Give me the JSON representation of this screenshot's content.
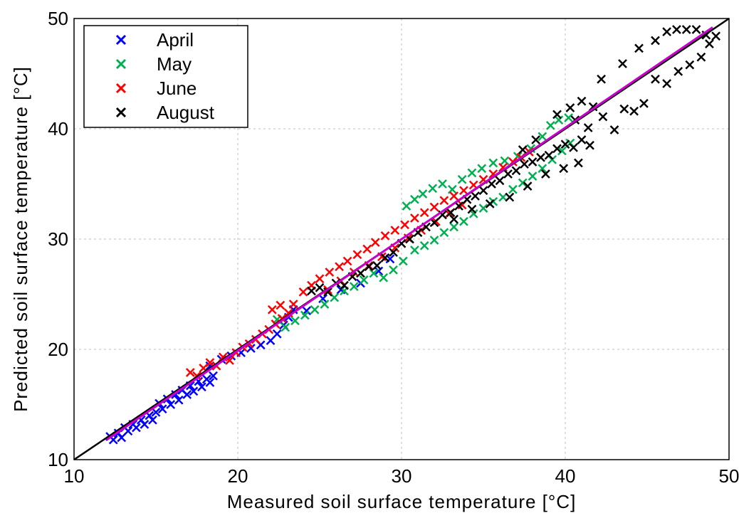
{
  "chart_data": {
    "type": "scatter",
    "title": "",
    "xlabel": "Measured soil surface temperature [°C]",
    "ylabel": "Predicted soil surface temperature [°C]",
    "xlim": [
      10,
      50
    ],
    "ylim": [
      10,
      50
    ],
    "xticks": [
      "10",
      "20",
      "30",
      "40",
      "50"
    ],
    "yticks": [
      "10",
      "20",
      "30",
      "40",
      "50"
    ],
    "grid": true,
    "marker": "x",
    "legend_position": "top-left",
    "series": [
      {
        "name": "April",
        "color": "#0000ff",
        "points": [
          [
            12.2,
            12.1
          ],
          [
            12.4,
            11.8
          ],
          [
            12.7,
            12.4
          ],
          [
            12.9,
            12.0
          ],
          [
            13.1,
            12.9
          ],
          [
            13.3,
            12.6
          ],
          [
            13.6,
            13.2
          ],
          [
            13.8,
            12.9
          ],
          [
            14.1,
            13.6
          ],
          [
            14.3,
            13.2
          ],
          [
            14.6,
            14.0
          ],
          [
            14.8,
            13.6
          ],
          [
            15.0,
            14.3
          ],
          [
            15.2,
            15.1
          ],
          [
            15.4,
            14.6
          ],
          [
            15.7,
            15.5
          ],
          [
            15.9,
            15.0
          ],
          [
            16.2,
            15.9
          ],
          [
            16.4,
            15.4
          ],
          [
            16.6,
            16.3
          ],
          [
            16.9,
            15.9
          ],
          [
            17.1,
            16.7
          ],
          [
            17.3,
            16.2
          ],
          [
            17.6,
            17.1
          ],
          [
            17.8,
            16.6
          ],
          [
            18.1,
            17.3
          ],
          [
            18.3,
            17.0
          ],
          [
            18.5,
            17.6
          ],
          [
            18.3,
            18.5
          ],
          [
            19.0,
            19.1
          ],
          [
            19.6,
            19.4
          ],
          [
            20.2,
            19.7
          ],
          [
            20.8,
            20.1
          ],
          [
            21.4,
            20.4
          ],
          [
            22.0,
            20.8
          ],
          [
            22.4,
            21.4
          ],
          [
            22.8,
            22.2
          ],
          [
            23.1,
            22.9
          ],
          [
            23.4,
            23.6
          ],
          [
            24.2,
            23.5
          ],
          [
            25.2,
            24.6
          ],
          [
            26.3,
            25.4
          ],
          [
            27.5,
            26.0
          ],
          [
            28.6,
            27.1
          ],
          [
            29.3,
            28.2
          ]
        ]
      },
      {
        "name": "May",
        "color": "#00b050",
        "points": [
          [
            22.4,
            22.7
          ],
          [
            22.9,
            22.0
          ],
          [
            23.5,
            22.6
          ],
          [
            24.1,
            23.1
          ],
          [
            24.7,
            23.6
          ],
          [
            25.3,
            24.1
          ],
          [
            25.9,
            24.7
          ],
          [
            26.5,
            25.3
          ],
          [
            27.1,
            25.7
          ],
          [
            27.7,
            26.3
          ],
          [
            28.3,
            26.9
          ],
          [
            28.9,
            26.5
          ],
          [
            29.5,
            27.2
          ],
          [
            30.1,
            28.0
          ],
          [
            30.8,
            29.0
          ],
          [
            31.4,
            29.4
          ],
          [
            32.0,
            29.9
          ],
          [
            32.6,
            30.6
          ],
          [
            33.2,
            31.1
          ],
          [
            33.8,
            31.6
          ],
          [
            34.4,
            32.3
          ],
          [
            35.0,
            32.8
          ],
          [
            35.6,
            33.4
          ],
          [
            36.2,
            33.8
          ],
          [
            36.8,
            34.5
          ],
          [
            37.4,
            35.1
          ],
          [
            38.0,
            35.7
          ],
          [
            38.6,
            36.4
          ],
          [
            39.2,
            37.2
          ],
          [
            39.8,
            38.0
          ],
          [
            40.3,
            38.7
          ],
          [
            30.3,
            33.0
          ],
          [
            30.8,
            33.6
          ],
          [
            31.3,
            34.1
          ],
          [
            31.9,
            34.6
          ],
          [
            32.5,
            35.0
          ],
          [
            33.1,
            34.5
          ],
          [
            33.7,
            35.4
          ],
          [
            34.3,
            36.0
          ],
          [
            34.9,
            36.4
          ],
          [
            35.6,
            36.9
          ],
          [
            36.3,
            37.1
          ],
          [
            37.1,
            37.5
          ],
          [
            37.9,
            38.2
          ],
          [
            38.6,
            39.3
          ],
          [
            39.1,
            40.3
          ],
          [
            39.6,
            40.8
          ],
          [
            40.2,
            41.0
          ]
        ]
      },
      {
        "name": "June",
        "color": "#ff0000",
        "points": [
          [
            17.1,
            17.9
          ],
          [
            17.5,
            17.6
          ],
          [
            17.9,
            18.3
          ],
          [
            18.3,
            18.8
          ],
          [
            18.7,
            18.5
          ],
          [
            19.1,
            19.3
          ],
          [
            19.5,
            19.0
          ],
          [
            19.9,
            19.7
          ],
          [
            20.3,
            20.2
          ],
          [
            20.7,
            20.5
          ],
          [
            21.1,
            20.9
          ],
          [
            21.5,
            21.4
          ],
          [
            21.9,
            21.8
          ],
          [
            22.3,
            22.3
          ],
          [
            22.7,
            22.8
          ],
          [
            23.1,
            23.3
          ],
          [
            22.1,
            23.6
          ],
          [
            22.6,
            24.0
          ],
          [
            23.4,
            24.1
          ],
          [
            24.0,
            25.2
          ],
          [
            24.5,
            25.8
          ],
          [
            25.0,
            26.4
          ],
          [
            25.6,
            27.0
          ],
          [
            26.2,
            27.5
          ],
          [
            26.7,
            28.0
          ],
          [
            27.3,
            28.6
          ],
          [
            27.9,
            29.1
          ],
          [
            28.4,
            29.7
          ],
          [
            29.0,
            30.3
          ],
          [
            29.6,
            30.8
          ],
          [
            30.2,
            31.3
          ],
          [
            30.8,
            31.9
          ],
          [
            31.4,
            32.4
          ],
          [
            32.0,
            32.9
          ],
          [
            32.6,
            33.5
          ],
          [
            33.2,
            33.9
          ],
          [
            33.8,
            34.4
          ],
          [
            34.4,
            34.9
          ],
          [
            35.0,
            35.4
          ],
          [
            35.6,
            35.9
          ],
          [
            36.2,
            36.5
          ],
          [
            36.8,
            37.0
          ],
          [
            37.3,
            37.4
          ],
          [
            37.8,
            37.9
          ],
          [
            25.5,
            25.4
          ],
          [
            26.3,
            26.2
          ],
          [
            27.1,
            27.0
          ],
          [
            28.0,
            27.6
          ],
          [
            28.8,
            28.4
          ],
          [
            29.6,
            29.2
          ],
          [
            30.4,
            30.1
          ],
          [
            31.2,
            30.8
          ],
          [
            32.1,
            31.6
          ],
          [
            32.9,
            32.3
          ],
          [
            33.7,
            33.1
          ]
        ]
      },
      {
        "name": "August",
        "color": "#000000",
        "points": [
          [
            24.5,
            25.3
          ],
          [
            25.0,
            25.6
          ],
          [
            25.5,
            25.2
          ],
          [
            26.0,
            26.0
          ],
          [
            26.5,
            25.8
          ],
          [
            27.0,
            26.6
          ],
          [
            27.5,
            26.9
          ],
          [
            28.0,
            27.5
          ],
          [
            28.5,
            27.6
          ],
          [
            29.0,
            28.3
          ],
          [
            29.5,
            28.8
          ],
          [
            30.0,
            29.6
          ],
          [
            30.5,
            30.0
          ],
          [
            31.0,
            30.6
          ],
          [
            31.5,
            31.1
          ],
          [
            32.0,
            31.5
          ],
          [
            32.5,
            32.2
          ],
          [
            33.0,
            32.4
          ],
          [
            33.5,
            33.0
          ],
          [
            34.0,
            33.6
          ],
          [
            34.5,
            33.9
          ],
          [
            35.0,
            34.4
          ],
          [
            35.5,
            35.0
          ],
          [
            36.0,
            35.3
          ],
          [
            36.5,
            35.9
          ],
          [
            37.0,
            36.2
          ],
          [
            37.5,
            36.8
          ],
          [
            38.0,
            37.0
          ],
          [
            38.5,
            37.4
          ],
          [
            39.0,
            37.6
          ],
          [
            39.5,
            38.2
          ],
          [
            40.0,
            38.6
          ],
          [
            40.5,
            38.3
          ],
          [
            41.0,
            39.0
          ],
          [
            41.5,
            38.5
          ],
          [
            33.2,
            31.8
          ],
          [
            34.3,
            32.7
          ],
          [
            35.4,
            33.2
          ],
          [
            36.6,
            33.8
          ],
          [
            37.7,
            34.8
          ],
          [
            38.8,
            35.9
          ],
          [
            39.9,
            36.4
          ],
          [
            40.8,
            36.9
          ],
          [
            39.5,
            41.3
          ],
          [
            40.3,
            41.9
          ],
          [
            41.0,
            42.5
          ],
          [
            41.7,
            42.0
          ],
          [
            42.3,
            41.1
          ],
          [
            43.0,
            39.9
          ],
          [
            43.6,
            41.8
          ],
          [
            44.2,
            41.6
          ],
          [
            44.8,
            42.3
          ],
          [
            45.5,
            44.5
          ],
          [
            46.2,
            44.1
          ],
          [
            46.9,
            45.2
          ],
          [
            47.6,
            45.8
          ],
          [
            48.3,
            46.5
          ],
          [
            48.8,
            47.7
          ],
          [
            49.2,
            48.4
          ],
          [
            43.5,
            45.9
          ],
          [
            44.5,
            47.3
          ],
          [
            45.5,
            48.0
          ],
          [
            46.2,
            48.8
          ],
          [
            46.8,
            49.0
          ],
          [
            47.4,
            49.0
          ],
          [
            48.0,
            49.0
          ],
          [
            48.6,
            48.5
          ],
          [
            42.2,
            44.5
          ],
          [
            41.4,
            40.1
          ],
          [
            40.6,
            40.8
          ],
          [
            38.2,
            39.0
          ],
          [
            37.4,
            38.1
          ]
        ]
      }
    ],
    "lines": [
      {
        "kind": "1:1 line",
        "color": "#000000",
        "x": [
          10,
          50
        ],
        "y": [
          10,
          50
        ]
      },
      {
        "kind": "regression",
        "color": "#cc00cc",
        "x": [
          12,
          49
        ],
        "y": [
          11.8,
          49.2
        ]
      }
    ]
  }
}
